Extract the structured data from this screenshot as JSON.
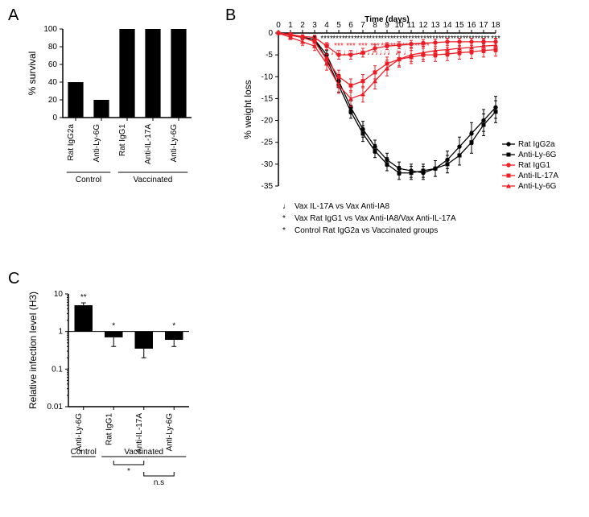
{
  "colors": {
    "black": "#000000",
    "red": "#ed1c24",
    "bg": "#ffffff"
  },
  "panelA": {
    "label": "A",
    "ylabel": "% survival",
    "ylim": [
      0,
      100
    ],
    "ytick_step": 20,
    "bar_color": "#000000",
    "bar_width": 0.6,
    "group_labels": [
      "Control",
      "Vaccinated"
    ],
    "categories": [
      "Rat IgG2a",
      "Anti-Ly-6G",
      "Rat IgG1",
      "Anti-IL-17A",
      "Anti-Ly-6G"
    ],
    "values": [
      40,
      20,
      100,
      100,
      100
    ],
    "label_fontsize": 10,
    "axis_fontsize": 12,
    "type": "bar"
  },
  "panelB": {
    "label": "B",
    "title": "Time (days)",
    "xlabel_vals": [
      0,
      1,
      2,
      3,
      4,
      5,
      6,
      7,
      8,
      9,
      10,
      11,
      12,
      13,
      14,
      15,
      16,
      17,
      18
    ],
    "ylabel": "% weight loss",
    "ylim": [
      -35,
      0
    ],
    "ytick_step": 5,
    "type": "line_errorbar",
    "label_fontsize": 10,
    "axis_fontsize": 12,
    "series": [
      {
        "name": "Rat IgG2a",
        "color": "#000000",
        "marker": "circle",
        "y": [
          0,
          -0.5,
          -1,
          -1.5,
          -5,
          -11,
          -17,
          -22,
          -26,
          -29,
          -31,
          -31.5,
          -32,
          -31,
          -29,
          -26,
          -23,
          -20,
          -17
        ],
        "err": [
          0,
          0.5,
          0.5,
          0.8,
          1,
          1.5,
          1.5,
          1.8,
          1.5,
          1.5,
          1.5,
          1.5,
          1.5,
          1.8,
          2,
          2.2,
          2.5,
          2.5,
          2.5
        ]
      },
      {
        "name": "Anti-Ly-6G",
        "color": "#000000",
        "marker": "square",
        "y": [
          0,
          -0.5,
          -1,
          -1.5,
          -6,
          -12,
          -18,
          -23,
          -27,
          -30,
          -32,
          -32,
          -31.5,
          -31,
          -30,
          -28,
          -25,
          -21,
          -18
        ],
        "err": [
          0,
          0.5,
          0.5,
          0.8,
          1,
          1.5,
          1.5,
          1.8,
          1.5,
          1.5,
          1.5,
          1.5,
          1.5,
          1.8,
          2,
          2.2,
          2.5,
          2.5,
          2.5
        ]
      },
      {
        "name": "Rat IgG1",
        "color": "#ed1c24",
        "marker": "circle",
        "y": [
          0,
          -0.3,
          -0.8,
          -1,
          -3,
          -5,
          -5,
          -4.5,
          -3.5,
          -3,
          -2.8,
          -2.5,
          -2.3,
          -2.2,
          -2,
          -2,
          -2,
          -2,
          -2
        ],
        "err": [
          0,
          0.4,
          0.4,
          0.5,
          0.8,
          1,
          1,
          1,
          0.8,
          0.8,
          0.8,
          0.8,
          0.8,
          0.8,
          0.8,
          0.8,
          0.8,
          0.8,
          0.8
        ]
      },
      {
        "name": "Anti-IL-17A",
        "color": "#ed1c24",
        "marker": "square",
        "y": [
          0,
          -0.5,
          -1,
          -2,
          -6,
          -10,
          -12,
          -11,
          -9,
          -7,
          -6,
          -5.5,
          -5,
          -5,
          -4.8,
          -4.5,
          -4.3,
          -4,
          -3.8
        ],
        "err": [
          0,
          0.5,
          0.5,
          0.8,
          1.2,
          1.5,
          1.5,
          1.5,
          1.5,
          1.5,
          1.5,
          1.5,
          1.5,
          1.5,
          1.5,
          1.5,
          1.5,
          1.5,
          1.5
        ]
      },
      {
        "name": "Anti-Ly-6G",
        "color": "#ed1c24",
        "marker": "triangle",
        "y": [
          0,
          -1,
          -2,
          -3,
          -7,
          -12,
          -15,
          -14,
          -11,
          -8,
          -6,
          -5,
          -4.5,
          -4,
          -3.8,
          -3.5,
          -3.3,
          -3,
          -2.8
        ],
        "err": [
          0,
          0.5,
          0.8,
          1,
          1.5,
          1.8,
          1.8,
          1.8,
          1.8,
          1.8,
          1.8,
          1.5,
          1.5,
          1.5,
          1.5,
          1.5,
          1.5,
          1.5,
          1.5
        ]
      }
    ],
    "significance": {
      "black_stars": {
        "3": "*",
        "4": "****",
        "5": "****",
        "6": "****",
        "7": "****",
        "8": "****",
        "9": "****",
        "10": "****",
        "11": "****",
        "12": "****",
        "13": "****",
        "14": "****",
        "15": "****",
        "16": "****",
        "17": "****",
        "18": "***"
      },
      "red_stars": {
        "4": "**",
        "5": "***",
        "6": "***",
        "7": "***",
        "8": "***",
        "9": "****",
        "10": "****",
        "11": "****",
        "12": "****"
      },
      "red_music": {
        "5": "♩♩",
        "6": "♩♩♩♩",
        "7": "♩♩♩♩",
        "8": "♩♩♩♩",
        "9": "♩♩♩♩",
        "10": "♩♩♩"
      }
    },
    "legend_notes": [
      {
        "symbol": "♩",
        "color": "#ed1c24",
        "text": "Vax IL-17A vs Vax Anti-IA8"
      },
      {
        "symbol": "*",
        "color": "#ed1c24",
        "text": "Vax Rat IgG1 vs Vax Anti-IA8/Vax Anti-IL-17A"
      },
      {
        "symbol": "*",
        "color": "#000000",
        "text": "Control Rat IgG2a vs Vaccinated groups"
      }
    ]
  },
  "panelC": {
    "label": "C",
    "ylabel": "Relative infection level (H3)",
    "yscale": "log",
    "ylim": [
      0.01,
      10
    ],
    "yticks": [
      0.01,
      0.1,
      1,
      10
    ],
    "ref_line": 1,
    "bar_color": "#000000",
    "bar_width": 0.6,
    "group_labels": [
      "Control",
      "Vaccinated"
    ],
    "categories": [
      "Anti-Ly-6G",
      "Rat IgG1",
      "Anti-IL-17A",
      "Anti-Ly-6G"
    ],
    "values": [
      5.0,
      0.7,
      0.35,
      0.6
    ],
    "errors": [
      0.8,
      0.3,
      0.15,
      0.2
    ],
    "sig_above": [
      "**",
      "*",
      "",
      "*"
    ],
    "bracket1": {
      "from": 1,
      "to": 2,
      "label": "*"
    },
    "bracket2": {
      "from": 2,
      "to": 3,
      "label": "n.s"
    },
    "label_fontsize": 10,
    "axis_fontsize": 11,
    "type": "bar_log"
  }
}
